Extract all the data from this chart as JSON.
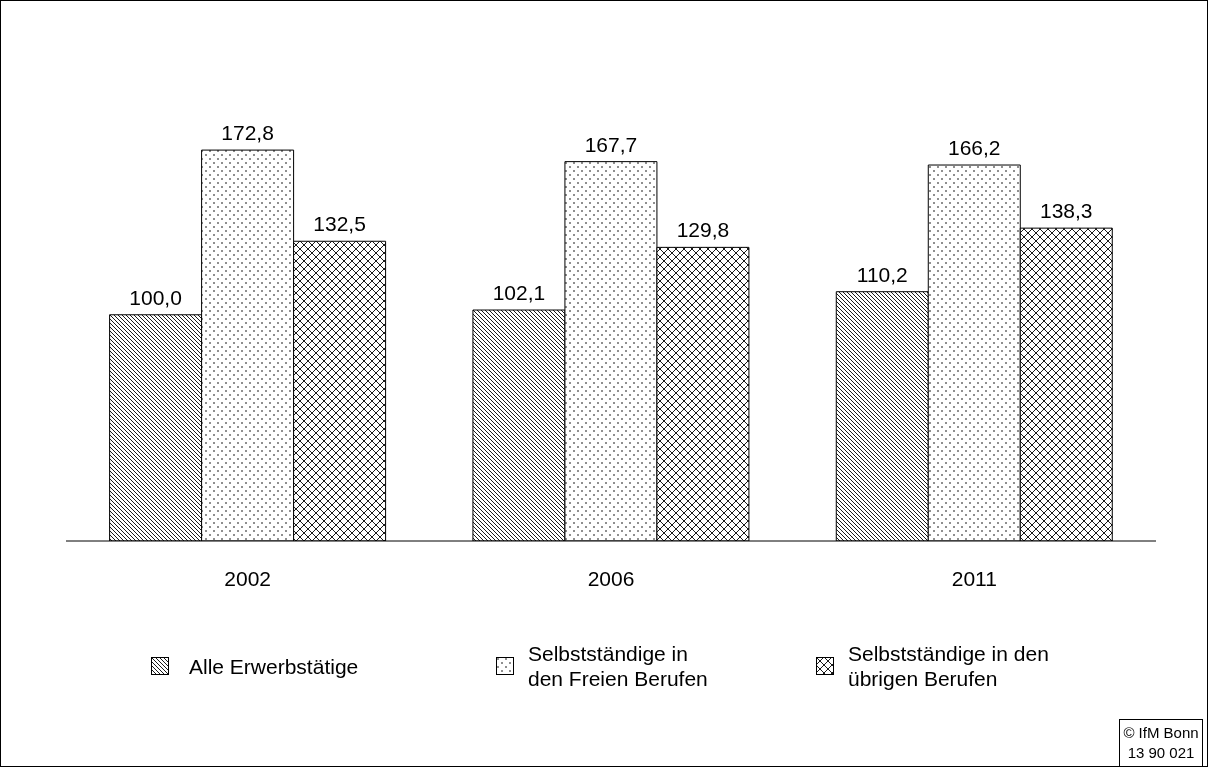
{
  "chart_data": {
    "type": "bar",
    "categories": [
      "2002",
      "2006",
      "2011"
    ],
    "series": [
      {
        "name": "Alle Erwerbstätige",
        "color": "#000000",
        "values": [
          100.0,
          102.1,
          110.2
        ],
        "value_labels": [
          "100,0",
          "102,1",
          "110,2"
        ]
      },
      {
        "name": "Selbstständige in den Freien Berufen",
        "color": "#000000",
        "values": [
          172.8,
          167.7,
          166.2
        ],
        "value_labels": [
          "172,8",
          "167,7",
          "166,2"
        ]
      },
      {
        "name": "Selbstständige in den übrigen Berufen",
        "color": "#000000",
        "values": [
          132.5,
          129.8,
          138.3
        ],
        "value_labels": [
          "132,5",
          "129,8",
          "138,3"
        ]
      }
    ],
    "legend": "bottom",
    "annotations": [
      "© IfM Bonn 13 90 021"
    ]
  }
}
